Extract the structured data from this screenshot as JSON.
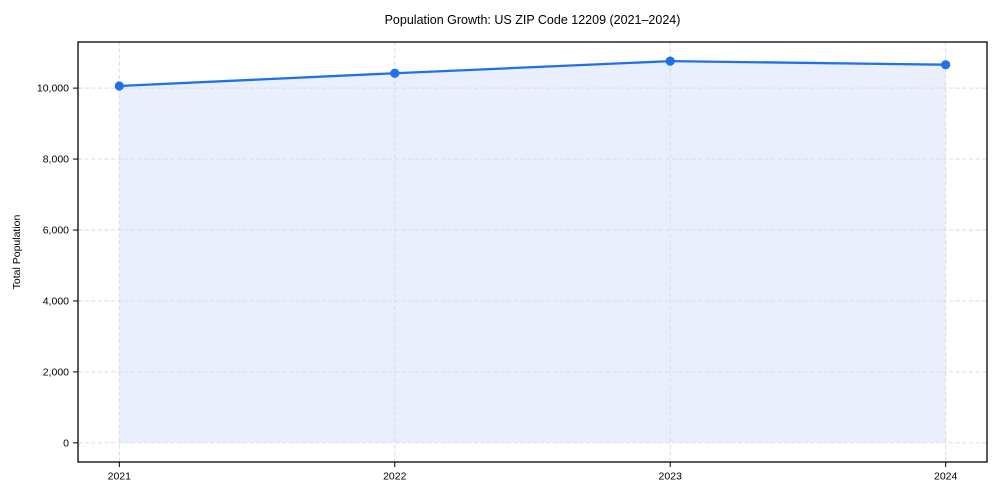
{
  "chart_data": {
    "type": "area",
    "title": "Population Growth: US ZIP Code 12209 (2021–2024)",
    "xlabel": "",
    "ylabel": "Total Population",
    "x": [
      2021,
      2022,
      2023,
      2024
    ],
    "x_tick_labels": [
      "2021",
      "2022",
      "2023",
      "2024"
    ],
    "values": [
      10060,
      10420,
      10760,
      10660
    ],
    "y_ticks": [
      0,
      2000,
      4000,
      6000,
      8000,
      10000
    ],
    "y_tick_labels": [
      "0",
      "2,000",
      "4,000",
      "6,000",
      "8,000",
      "10,000"
    ],
    "xlim": [
      2020.85,
      2024.15
    ],
    "ylim": [
      -540,
      11300
    ],
    "fill_baseline": 0,
    "grid": true,
    "grid_style": "dashed",
    "legend": "none",
    "marker": "circle",
    "colors": {
      "line": "#2071e8",
      "marker": "#2071e8",
      "fill": "#e9effc",
      "grid": "#d9d9d9",
      "spine": "#000000",
      "text": "#000000"
    }
  }
}
